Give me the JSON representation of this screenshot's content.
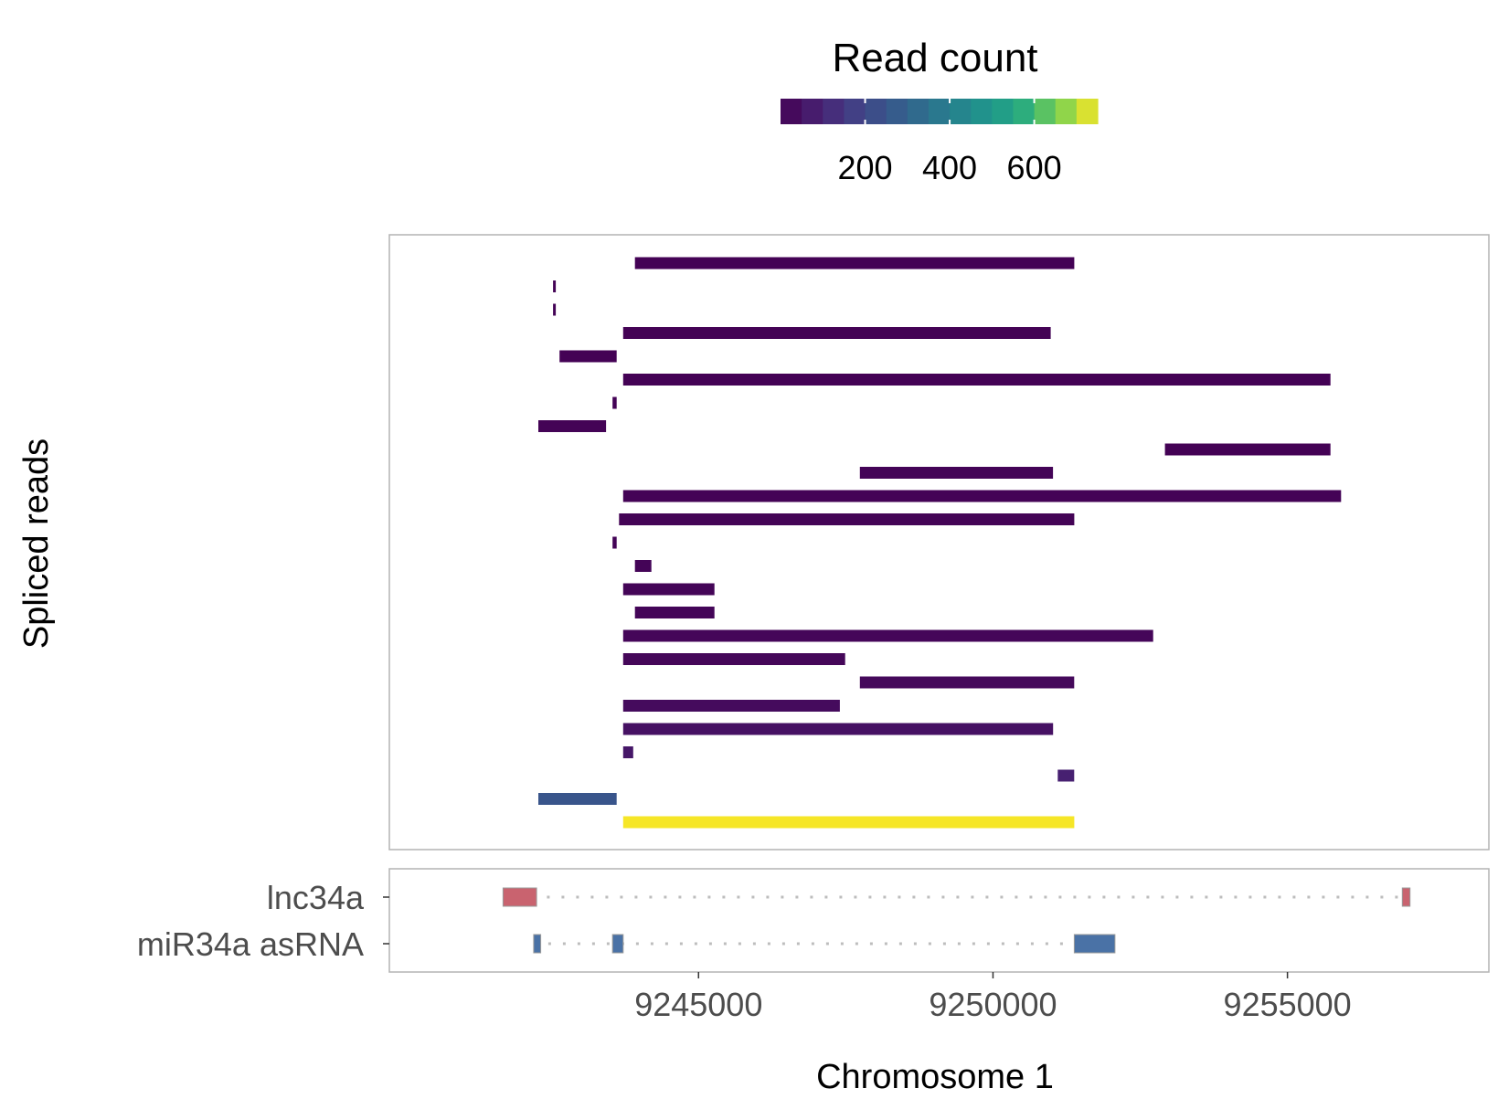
{
  "chart_data": {
    "type": "bar",
    "subtype": "genomic-track",
    "legend": {
      "title": "Read count",
      "position": "top-center",
      "colormap": "viridis",
      "range": [
        0,
        750
      ],
      "ticks": [
        200,
        400,
        600
      ],
      "tick_labels": [
        "200",
        "400",
        "600"
      ]
    },
    "reads_panel": {
      "ylabel": "Spliced reads",
      "reads": [
        {
          "start": 9243920,
          "end": 9251380,
          "count": 3
        },
        {
          "start": 9242530,
          "end": 9242560,
          "count": 5
        },
        {
          "start": 9242530,
          "end": 9242560,
          "count": 5
        },
        {
          "start": 9243720,
          "end": 9250980,
          "count": 4
        },
        {
          "start": 9242640,
          "end": 9243610,
          "count": 4
        },
        {
          "start": 9243720,
          "end": 9255730,
          "count": 3
        },
        {
          "start": 9243540,
          "end": 9243610,
          "count": 6
        },
        {
          "start": 9242280,
          "end": 9243430,
          "count": 5
        },
        {
          "start": 9252920,
          "end": 9255730,
          "count": 4
        },
        {
          "start": 9247740,
          "end": 9251020,
          "count": 8
        },
        {
          "start": 9243720,
          "end": 9255910,
          "count": 6
        },
        {
          "start": 9243650,
          "end": 9251380,
          "count": 7
        },
        {
          "start": 9243540,
          "end": 9243610,
          "count": 8
        },
        {
          "start": 9243920,
          "end": 9244200,
          "count": 9
        },
        {
          "start": 9243720,
          "end": 9245270,
          "count": 10
        },
        {
          "start": 9243920,
          "end": 9245270,
          "count": 12
        },
        {
          "start": 9243720,
          "end": 9252720,
          "count": 14
        },
        {
          "start": 9243720,
          "end": 9247490,
          "count": 16
        },
        {
          "start": 9247740,
          "end": 9251380,
          "count": 22
        },
        {
          "start": 9243720,
          "end": 9247400,
          "count": 28
        },
        {
          "start": 9243720,
          "end": 9251020,
          "count": 45
        },
        {
          "start": 9243720,
          "end": 9243890,
          "count": 60
        },
        {
          "start": 9251100,
          "end": 9251380,
          "count": 85
        },
        {
          "start": 9242280,
          "end": 9243610,
          "count": 250
        },
        {
          "start": 9243720,
          "end": 9251380,
          "count": 745
        }
      ]
    },
    "annotation_panel": {
      "transcripts": [
        {
          "name": "lnc34a",
          "color": "#c9636f",
          "exons": [
            [
              9241680,
              9242250
            ],
            [
              9256950,
              9257080
            ]
          ],
          "span": [
            9241680,
            9257080
          ]
        },
        {
          "name": "miR34a asRNA",
          "color": "#4a72a6",
          "exons": [
            [
              9242200,
              9242320
            ],
            [
              9243540,
              9243720
            ],
            [
              9251380,
              9252070
            ]
          ],
          "span": [
            9242200,
            9252070
          ]
        }
      ]
    },
    "x": {
      "label": "Chromosome 1",
      "range": [
        9239750,
        9258420
      ],
      "ticks": [
        9245000,
        9250000,
        9255000
      ],
      "tick_labels": [
        "9245000",
        "9250000",
        "9255000"
      ]
    }
  }
}
